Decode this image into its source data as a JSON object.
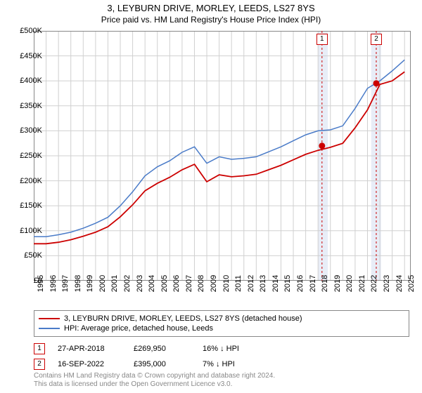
{
  "title": "3, LEYBURN DRIVE, MORLEY, LEEDS, LS27 8YS",
  "subtitle": "Price paid vs. HM Land Registry's House Price Index (HPI)",
  "chart": {
    "type": "line",
    "background_color": "#ffffff",
    "grid_color": "#d0d0d0",
    "x_years": [
      1995,
      1996,
      1997,
      1998,
      1999,
      2000,
      2001,
      2002,
      2003,
      2004,
      2005,
      2006,
      2007,
      2008,
      2009,
      2010,
      2011,
      2012,
      2013,
      2014,
      2015,
      2016,
      2017,
      2018,
      2019,
      2020,
      2021,
      2022,
      2023,
      2024,
      2025
    ],
    "xlim": [
      1995,
      2025.5
    ],
    "ylim": [
      0,
      500000
    ],
    "ytick_step": 50000,
    "ytick_labels": [
      "£0",
      "£50K",
      "£100K",
      "£150K",
      "£200K",
      "£250K",
      "£300K",
      "£350K",
      "£400K",
      "£450K",
      "£500K"
    ],
    "tick_fontsize": 11,
    "series": [
      {
        "name": "hpi",
        "label": "HPI: Average price, detached house, Leeds",
        "color": "#4a7bc8",
        "line_width": 1.5,
        "values_by_year": [
          88000,
          88000,
          92000,
          97000,
          105000,
          115000,
          127000,
          150000,
          178000,
          210000,
          228000,
          240000,
          257000,
          268000,
          235000,
          248000,
          243000,
          245000,
          248000,
          258000,
          268000,
          280000,
          292000,
          300000,
          302000,
          310000,
          345000,
          385000,
          400000,
          420000,
          442000
        ]
      },
      {
        "name": "property",
        "label": "3, LEYBURN DRIVE, MORLEY, LEEDS, LS27 8YS (detached house)",
        "color": "#cc0000",
        "line_width": 1.8,
        "values_by_year": [
          74000,
          74000,
          77000,
          82000,
          89000,
          97000,
          108000,
          128000,
          152000,
          180000,
          195000,
          207000,
          222000,
          233000,
          198000,
          212000,
          208000,
          210000,
          213000,
          222000,
          231000,
          242000,
          253000,
          261000,
          267000,
          275000,
          306000,
          342000,
          393000,
          400000,
          418000
        ]
      }
    ],
    "highlight_bands": [
      {
        "from_year": 2018.0,
        "to_year": 2018.8,
        "color": "#e8edf7"
      },
      {
        "from_year": 2022.3,
        "to_year": 2023.1,
        "color": "#e8edf7"
      }
    ],
    "vlines": [
      {
        "year": 2018.32,
        "color": "#cc0000",
        "dash": "3,3"
      },
      {
        "year": 2022.71,
        "color": "#cc0000",
        "dash": "3,3"
      }
    ],
    "sale_markers": [
      {
        "n": 1,
        "year": 2018.32,
        "price": 269950,
        "dot_color": "#cc0000"
      },
      {
        "n": 2,
        "year": 2022.71,
        "price": 395000,
        "dot_color": "#cc0000"
      }
    ]
  },
  "legend": {
    "items": [
      {
        "color": "#cc0000",
        "text": "3, LEYBURN DRIVE, MORLEY, LEEDS, LS27 8YS (detached house)"
      },
      {
        "color": "#4a7bc8",
        "text": "HPI: Average price, detached house, Leeds"
      }
    ]
  },
  "sales_table": [
    {
      "n": "1",
      "date": "27-APR-2018",
      "price": "£269,950",
      "delta": "16% ↓ HPI"
    },
    {
      "n": "2",
      "date": "16-SEP-2022",
      "price": "£395,000",
      "delta": "7% ↓ HPI"
    }
  ],
  "footer_line1": "Contains HM Land Registry data © Crown copyright and database right 2024.",
  "footer_line2": "This data is licensed under the Open Government Licence v3.0."
}
